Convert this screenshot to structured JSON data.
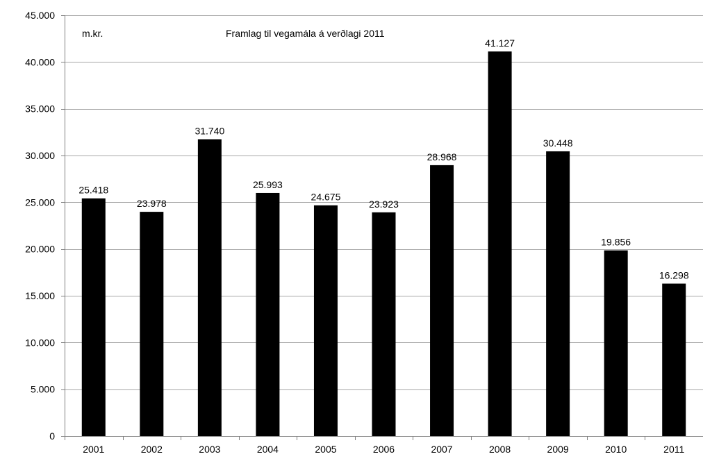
{
  "chart_data": {
    "type": "bar",
    "title": "Framlag til vegamála á verðlagi 2011",
    "unit_label": "m.kr.",
    "xlabel": "",
    "ylabel": "",
    "categories": [
      "2001",
      "2002",
      "2003",
      "2004",
      "2005",
      "2006",
      "2007",
      "2008",
      "2009",
      "2010",
      "2011"
    ],
    "values": [
      25418,
      23978,
      31740,
      25993,
      24675,
      23923,
      28968,
      41127,
      30448,
      19856,
      16298
    ],
    "value_labels": [
      "25.418",
      "23.978",
      "31.740",
      "25.993",
      "24.675",
      "23.923",
      "28.968",
      "41.127",
      "30.448",
      "19.856",
      "16.298"
    ],
    "ylim": [
      0,
      45000
    ],
    "yticks": [
      0,
      5000,
      10000,
      15000,
      20000,
      25000,
      30000,
      35000,
      40000,
      45000
    ],
    "ytick_labels": [
      "0",
      "5.000",
      "10.000",
      "15.000",
      "20.000",
      "25.000",
      "30.000",
      "35.000",
      "40.000",
      "45.000"
    ],
    "grid": true,
    "legend": "none",
    "colors": {
      "bar": "#000000",
      "grid": "#a6a6a6",
      "axis": "#7f7f7f",
      "text": "#000000",
      "background": "#ffffff"
    }
  }
}
